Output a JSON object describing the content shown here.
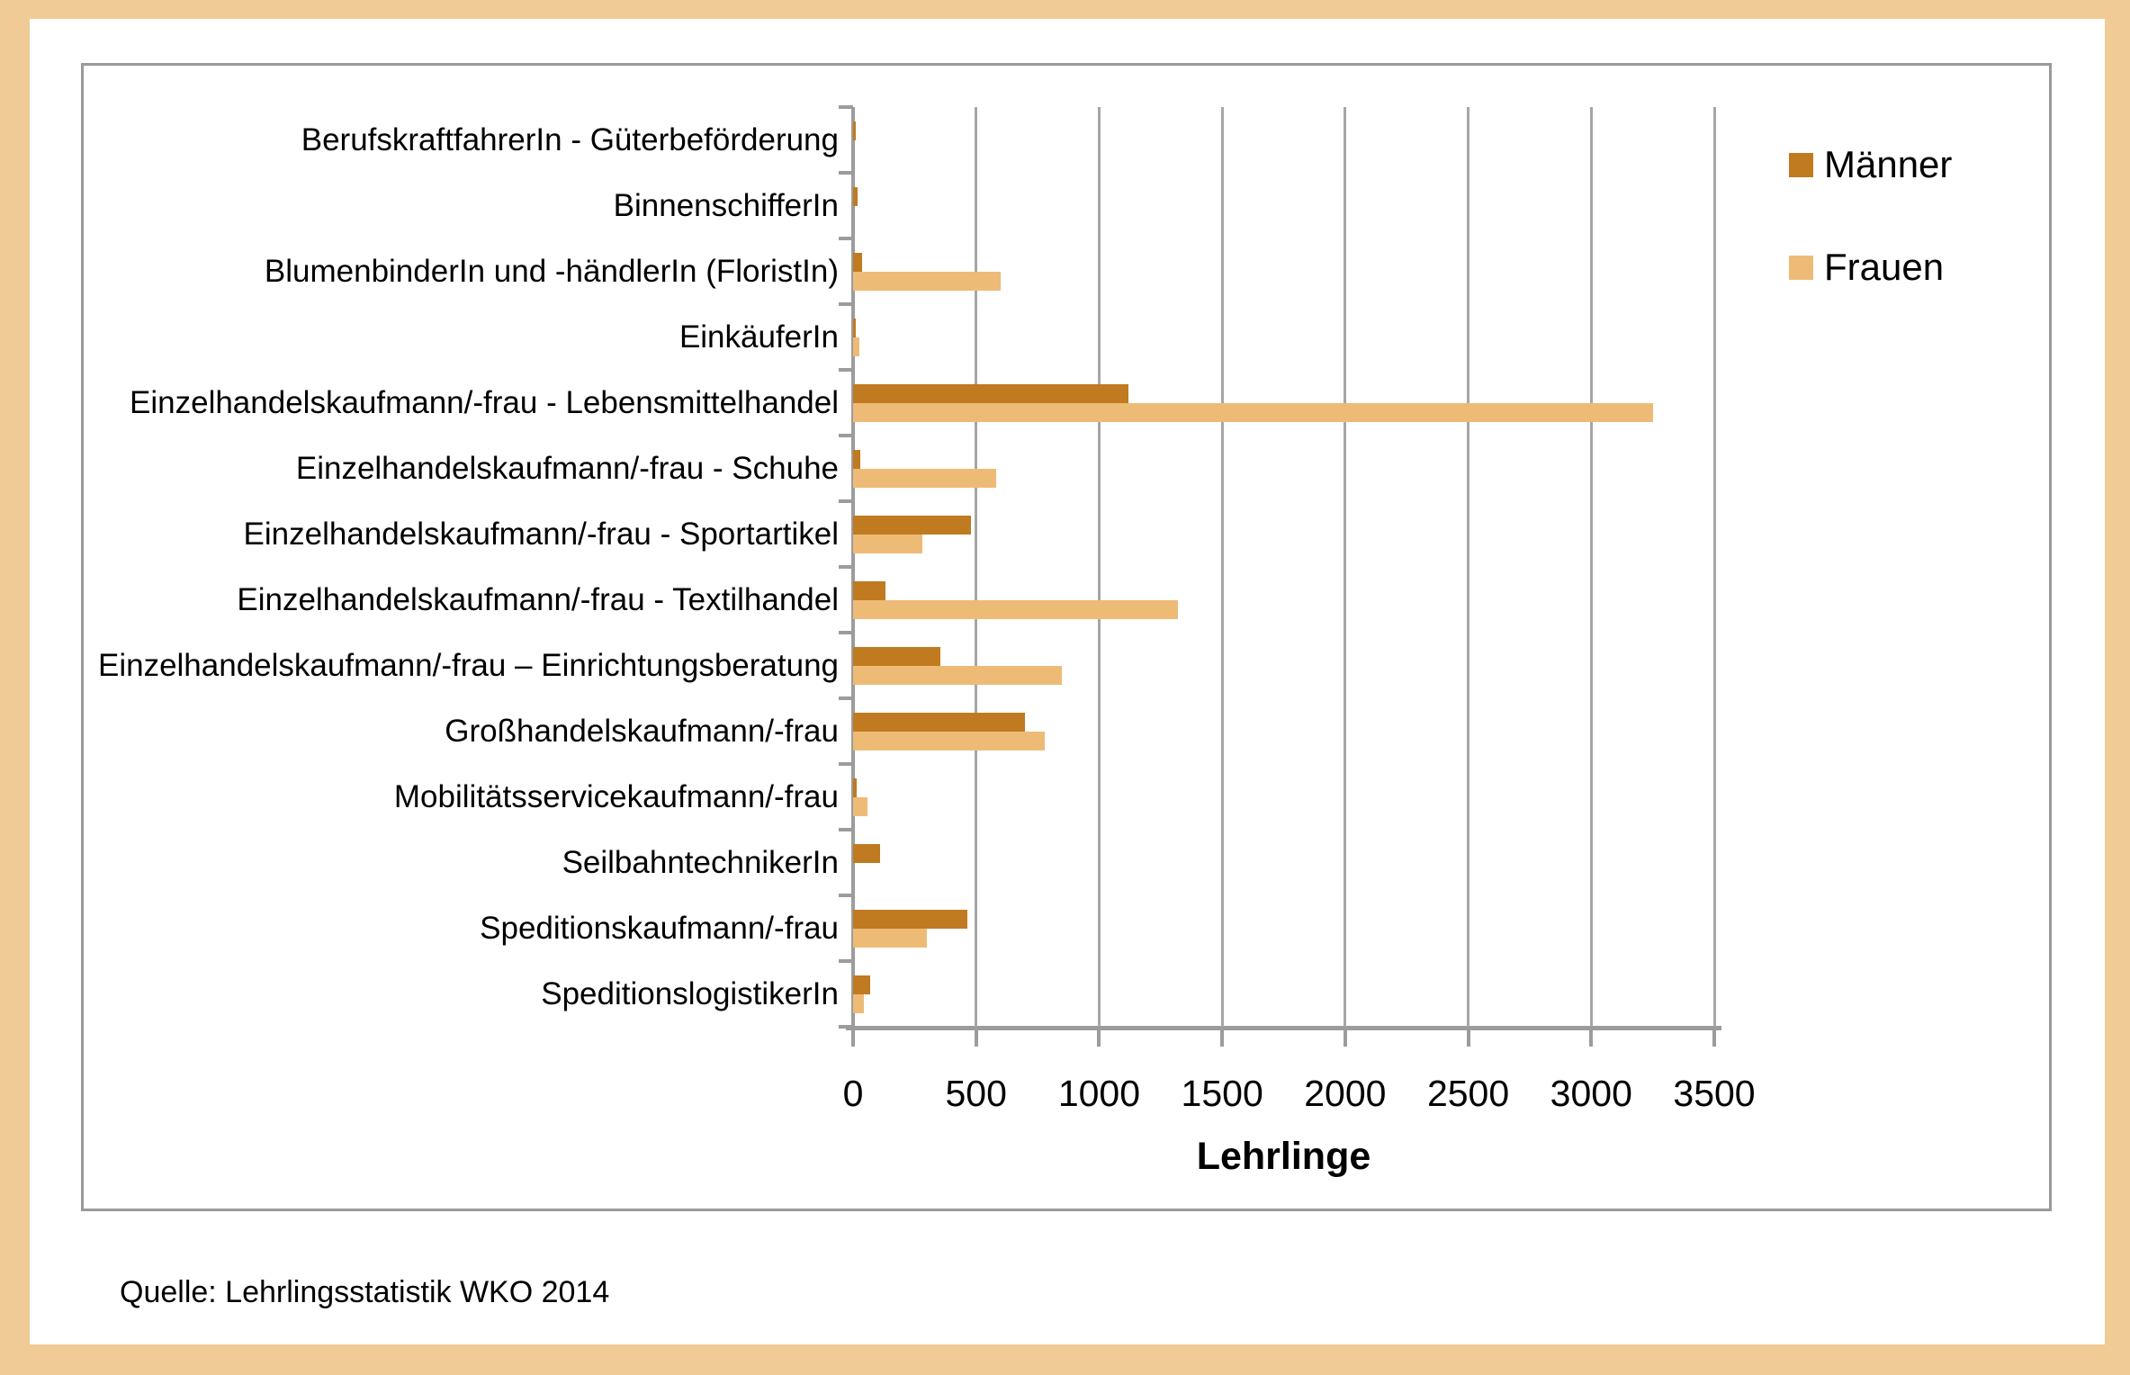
{
  "chart_data": {
    "type": "bar",
    "orientation": "horizontal",
    "categories": [
      "BerufskraftfahrerIn - Güterbeförderung",
      "BinnenschifferIn",
      "BlumenbinderIn und -händlerIn (FloristIn)",
      "EinkäuferIn",
      "Einzelhandelskaufmann/-frau - Lebensmittelhandel",
      "Einzelhandelskaufmann/-frau - Schuhe",
      "Einzelhandelskaufmann/-frau - Sportartikel",
      "Einzelhandelskaufmann/-frau - Textilhandel",
      "Einzelhandelskaufmann/-frau – Einrichtungsberatung",
      "Großhandelskaufmann/-frau",
      "Mobilitätsservicekaufmann/-frau",
      "SeilbahntechnikerIn",
      "Speditionskaufmann/-frau",
      "SpeditionslogistikerIn"
    ],
    "series": [
      {
        "name": "Männer",
        "color": "#c07a20",
        "values": [
          10,
          20,
          35,
          10,
          1120,
          30,
          480,
          130,
          355,
          700,
          15,
          110,
          465,
          70
        ]
      },
      {
        "name": "Frauen",
        "color": "#eebb77",
        "values": [
          0,
          0,
          600,
          25,
          3250,
          580,
          280,
          1320,
          850,
          780,
          60,
          0,
          300,
          45
        ]
      }
    ],
    "xlabel": "Lehrlinge",
    "ylabel": "",
    "xlim": [
      0,
      3500
    ],
    "xticks": [
      0,
      500,
      1000,
      1500,
      2000,
      2500,
      3000,
      3500
    ],
    "xtick_labels": [
      "0",
      "500",
      "1000",
      "1500",
      "2000",
      "2500",
      "3000",
      "3500"
    ],
    "grid": true,
    "legend_position": "top-right"
  },
  "legend": {
    "maenner_label": "Männer",
    "frauen_label": "Frauen"
  },
  "source_note": "Quelle: Lehrlingsstatistik WKO 2014",
  "colors": {
    "frame_background": "#f0cb96",
    "sheet_background": "#ffffff",
    "chart_border": "#9a9a9a",
    "gridline": "#a6a6a6",
    "axis": "#9c9c9c",
    "maenner": "#c07a20",
    "frauen": "#eebb77"
  }
}
